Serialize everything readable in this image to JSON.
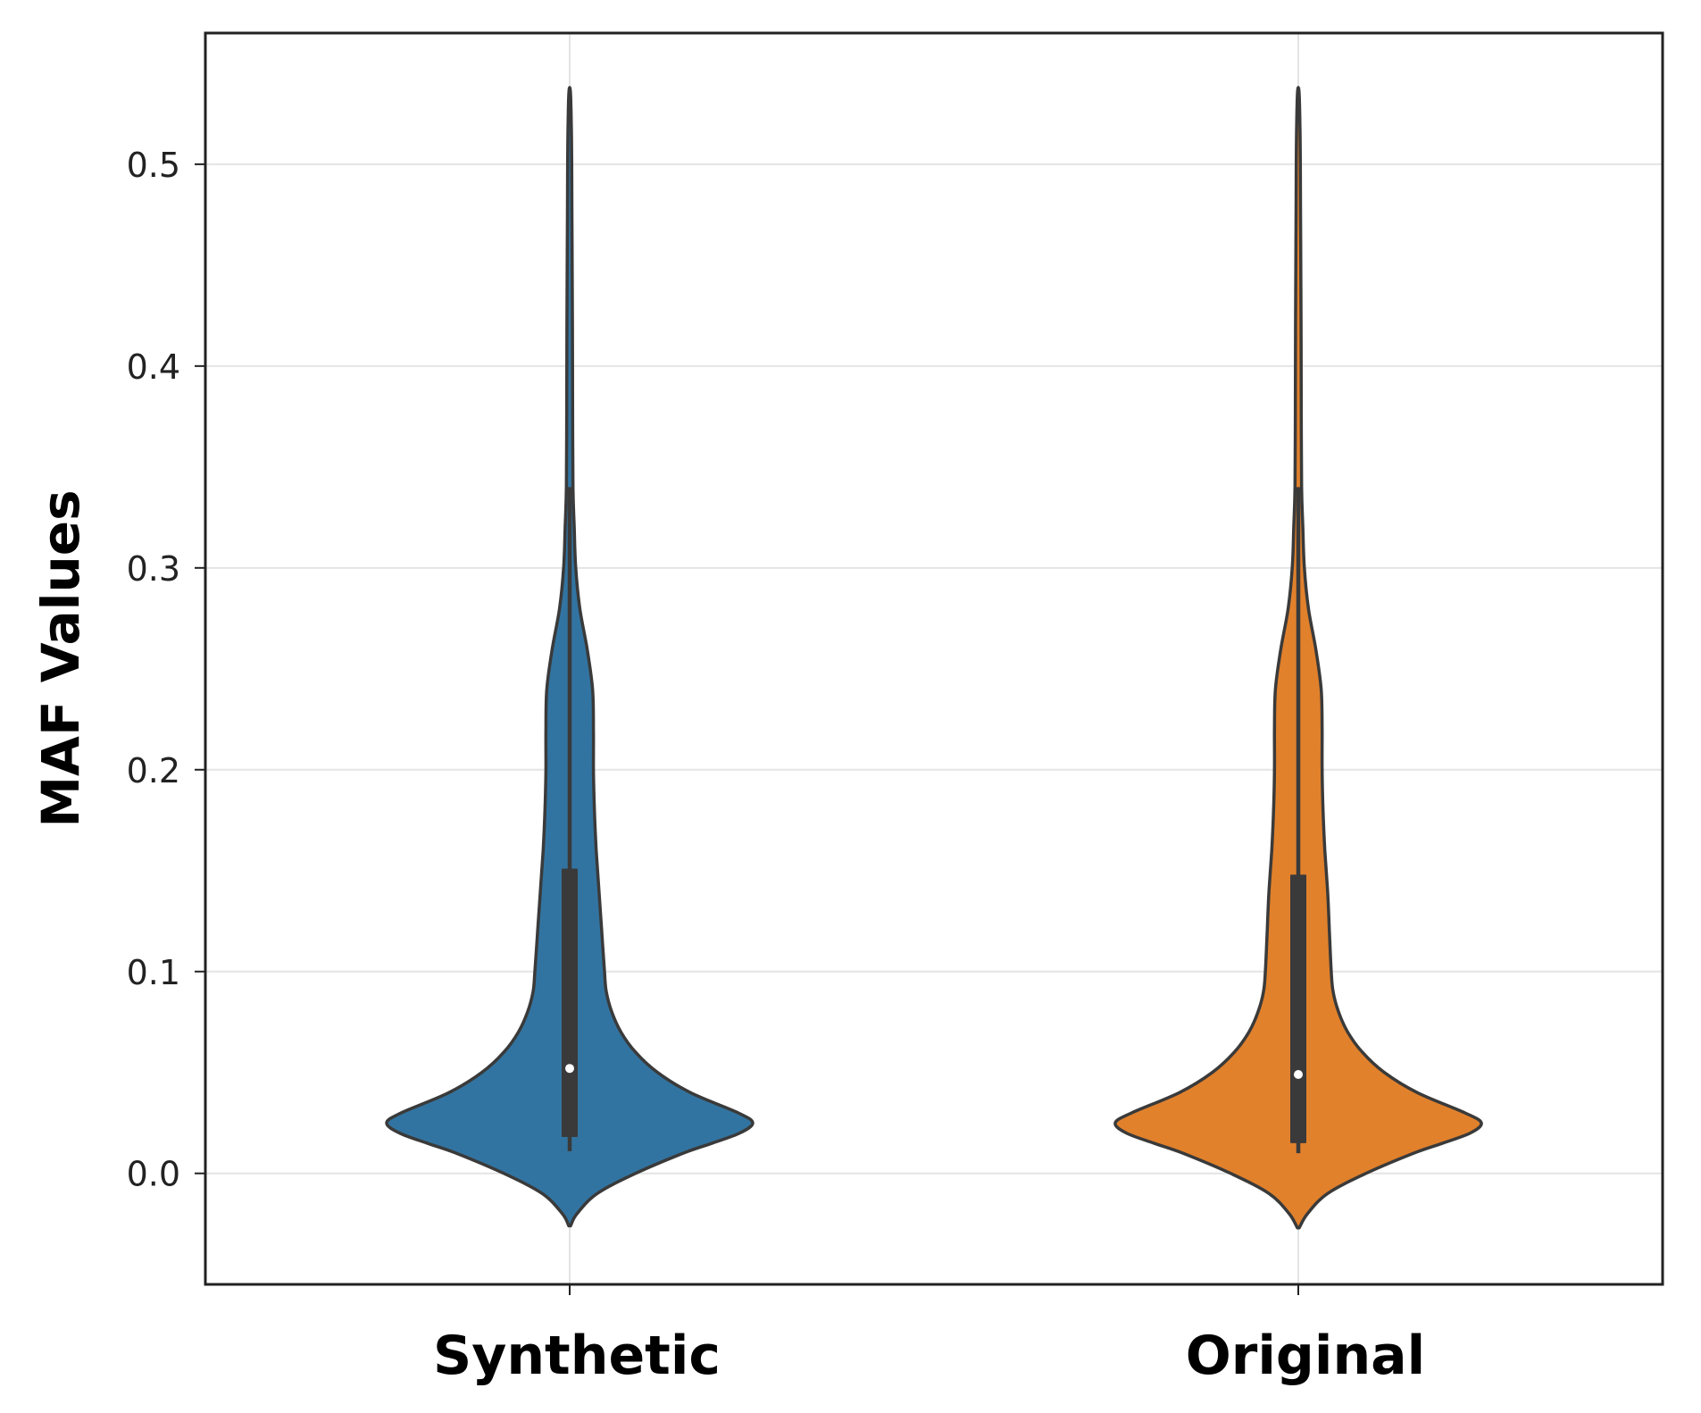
{
  "chart_data": {
    "type": "violin",
    "title": "",
    "xlabel": "",
    "ylabel": "MAF Values",
    "ylim": [
      -0.055,
      0.565
    ],
    "yticks": [
      0.0,
      0.1,
      0.2,
      0.3,
      0.4,
      0.5
    ],
    "ytick_labels": [
      "0.0",
      "0.1",
      "0.2",
      "0.3",
      "0.4",
      "0.5"
    ],
    "grid": true,
    "categories": [
      "Synthetic",
      "Original"
    ],
    "series": [
      {
        "category": "Synthetic",
        "color": "#3274a1",
        "min": -0.026,
        "max": 0.536,
        "whisker_low": 0.011,
        "whisker_high": 0.34,
        "q1": 0.018,
        "median": 0.052,
        "q3": 0.151,
        "density_profile": [
          [
            -0.026,
            0.005
          ],
          [
            -0.02,
            0.04
          ],
          [
            -0.01,
            0.15
          ],
          [
            0.0,
            0.36
          ],
          [
            0.01,
            0.62
          ],
          [
            0.015,
            0.78
          ],
          [
            0.02,
            0.93
          ],
          [
            0.025,
            1.0
          ],
          [
            0.03,
            0.92
          ],
          [
            0.04,
            0.66
          ],
          [
            0.05,
            0.48
          ],
          [
            0.06,
            0.36
          ],
          [
            0.07,
            0.28
          ],
          [
            0.08,
            0.23
          ],
          [
            0.09,
            0.2
          ],
          [
            0.1,
            0.19
          ],
          [
            0.12,
            0.175
          ],
          [
            0.14,
            0.16
          ],
          [
            0.16,
            0.145
          ],
          [
            0.18,
            0.135
          ],
          [
            0.2,
            0.13
          ],
          [
            0.22,
            0.13
          ],
          [
            0.24,
            0.125
          ],
          [
            0.26,
            0.095
          ],
          [
            0.28,
            0.055
          ],
          [
            0.3,
            0.033
          ],
          [
            0.32,
            0.025
          ],
          [
            0.34,
            0.018
          ],
          [
            0.38,
            0.016
          ],
          [
            0.42,
            0.015
          ],
          [
            0.46,
            0.013
          ],
          [
            0.5,
            0.011
          ],
          [
            0.52,
            0.009
          ],
          [
            0.536,
            0.004
          ]
        ]
      },
      {
        "category": "Original",
        "color": "#e1812c",
        "min": -0.027,
        "max": 0.536,
        "whisker_low": 0.01,
        "whisker_high": 0.34,
        "q1": 0.015,
        "median": 0.049,
        "q3": 0.148,
        "density_profile": [
          [
            -0.027,
            0.005
          ],
          [
            -0.02,
            0.05
          ],
          [
            -0.01,
            0.16
          ],
          [
            0.0,
            0.37
          ],
          [
            0.01,
            0.63
          ],
          [
            0.015,
            0.79
          ],
          [
            0.02,
            0.94
          ],
          [
            0.025,
            1.0
          ],
          [
            0.03,
            0.91
          ],
          [
            0.04,
            0.65
          ],
          [
            0.05,
            0.47
          ],
          [
            0.06,
            0.35
          ],
          [
            0.07,
            0.27
          ],
          [
            0.08,
            0.22
          ],
          [
            0.09,
            0.19
          ],
          [
            0.1,
            0.18
          ],
          [
            0.12,
            0.17
          ],
          [
            0.14,
            0.16
          ],
          [
            0.16,
            0.145
          ],
          [
            0.18,
            0.135
          ],
          [
            0.2,
            0.13
          ],
          [
            0.22,
            0.13
          ],
          [
            0.24,
            0.125
          ],
          [
            0.26,
            0.095
          ],
          [
            0.28,
            0.055
          ],
          [
            0.3,
            0.033
          ],
          [
            0.32,
            0.025
          ],
          [
            0.34,
            0.018
          ],
          [
            0.38,
            0.016
          ],
          [
            0.42,
            0.015
          ],
          [
            0.46,
            0.013
          ],
          [
            0.5,
            0.011
          ],
          [
            0.52,
            0.009
          ],
          [
            0.536,
            0.004
          ]
        ]
      }
    ]
  }
}
